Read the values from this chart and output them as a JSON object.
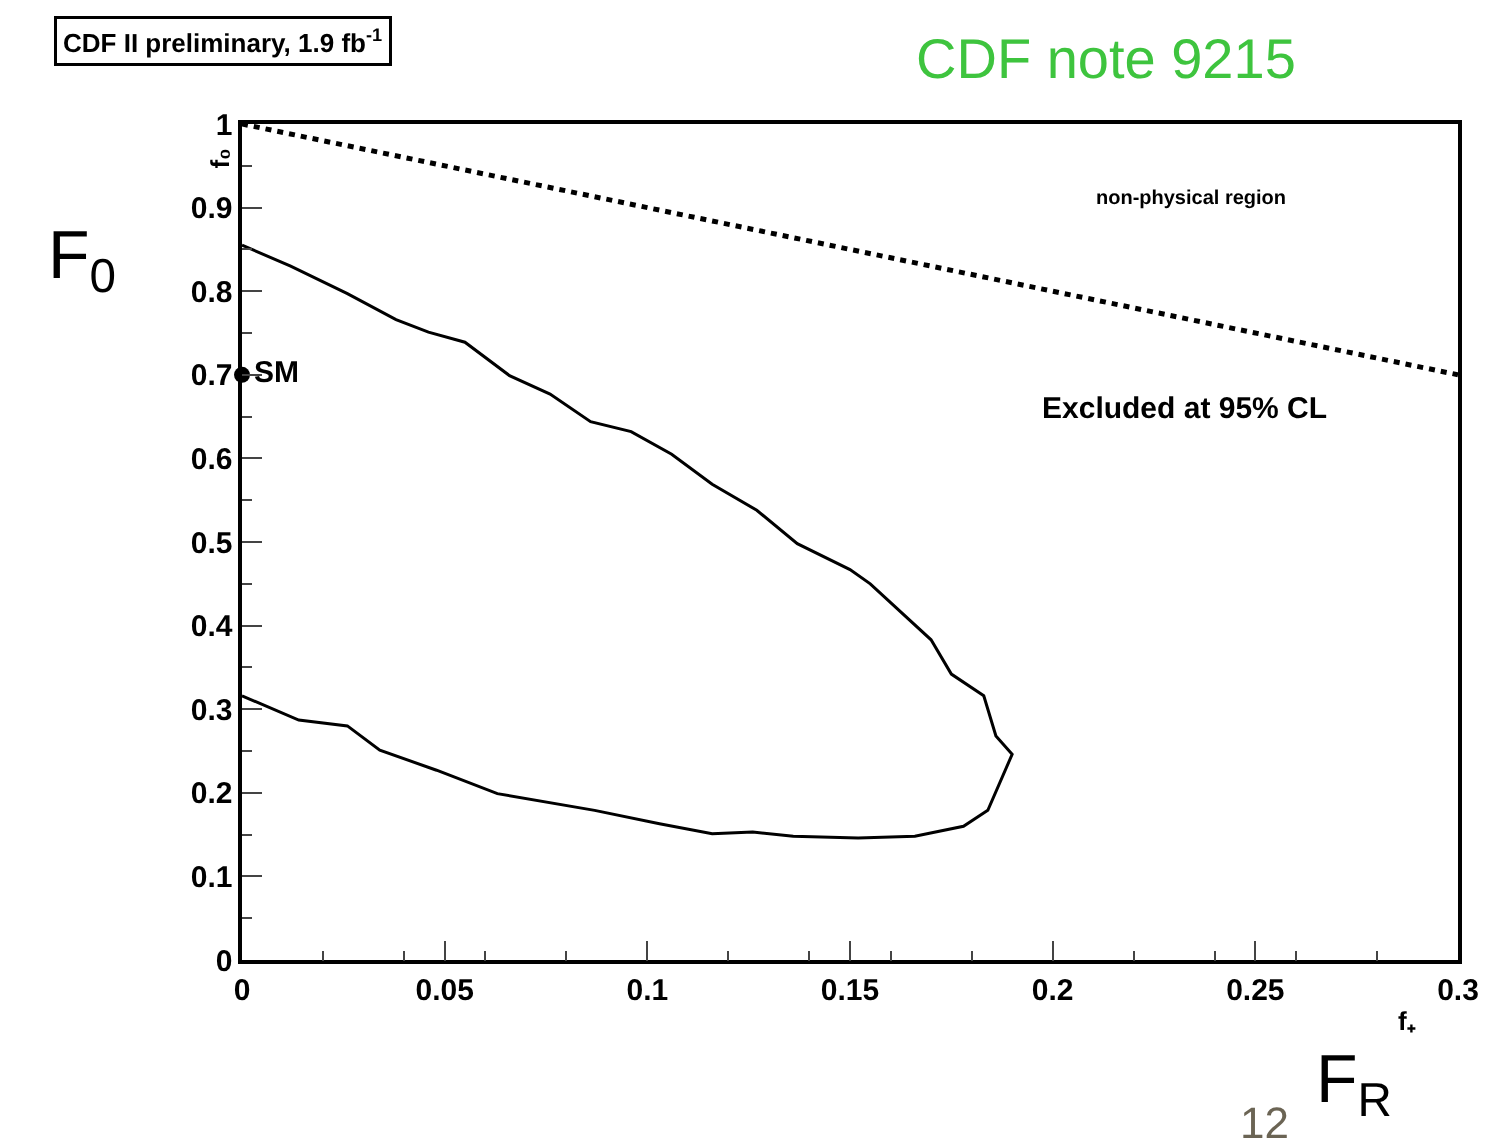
{
  "chart_data": {
    "type": "line",
    "title": "CDF II preliminary, 1.9 fb$^{-1}$",
    "xlabel": "f₊",
    "ylabel": "f₀",
    "xlim": [
      0,
      0.3
    ],
    "ylim": [
      0,
      1
    ],
    "xticks": [
      0,
      0.05,
      0.1,
      0.15,
      0.2,
      0.25,
      0.3
    ],
    "yticks": [
      0,
      0.1,
      0.2,
      0.3,
      0.4,
      0.5,
      0.6,
      0.7,
      0.8,
      0.9,
      1
    ],
    "legend": false,
    "series": [
      {
        "color": "#000000",
        "line_style": "solid",
        "x": [
          0,
          0.012,
          0.026,
          0.038,
          0.046,
          0.055,
          0.066,
          0.076,
          0.086,
          0.096,
          0.106,
          0.116,
          0.127,
          0.137,
          0.15,
          0.155,
          0.17,
          0.175,
          0.183,
          0.186,
          0.19,
          0.184,
          0.178,
          0.166,
          0.152,
          0.136,
          0.126,
          0.116,
          0.103,
          0.087,
          0.063,
          0.048,
          0.034,
          0.026,
          0.014,
          0
        ],
        "values": [
          0.855,
          0.83,
          0.797,
          0.766,
          0.751,
          0.739,
          0.699,
          0.677,
          0.644,
          0.632,
          0.605,
          0.569,
          0.538,
          0.498,
          0.467,
          0.45,
          0.383,
          0.342,
          0.316,
          0.268,
          0.246,
          0.179,
          0.16,
          0.148,
          0.146,
          0.148,
          0.153,
          0.151,
          0.163,
          0.179,
          0.199,
          0.227,
          0.251,
          0.28,
          0.287,
          0.316
        ]
      },
      {
        "color": "#000000",
        "line_style": "dotted",
        "x": [
          0,
          0.3
        ],
        "values": [
          1,
          0.7
        ]
      },
      {
        "type": "scatter",
        "name": "SM",
        "color": "#000000",
        "marker": "circle",
        "x": [
          0
        ],
        "values": [
          0.7
        ]
      }
    ],
    "annotations": [
      "non-physical region",
      "Excluded at 95% CL",
      "CDF note 9215",
      "F$_{0}$",
      "F$_{R}$",
      "12"
    ]
  }
}
